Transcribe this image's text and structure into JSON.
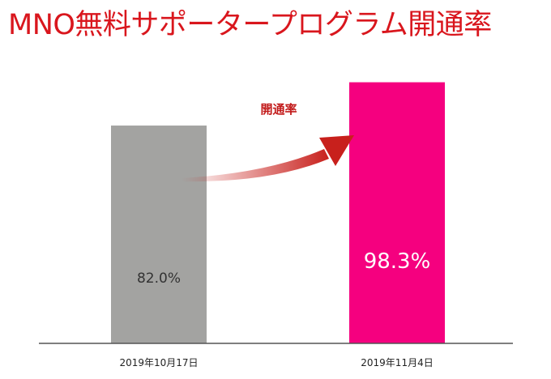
{
  "title": "MNO無料サポータープログラム開通率",
  "annotation": "開通率",
  "colors": {
    "title": "#d9161d",
    "annotation": "#c21a1a",
    "arrow": "#c8201c",
    "bar_before": "#a3a3a1",
    "bar_after": "#f5007f",
    "axis": "#555555",
    "tick_text": "#222222",
    "label_before": "#333333",
    "label_after": "#ffffff"
  },
  "chart_data": {
    "type": "bar",
    "title": "MNO無料サポータープログラム開通率",
    "categories": [
      "2019年10月17日",
      "2019年11月4日"
    ],
    "values": [
      82.0,
      98.3
    ],
    "value_labels": [
      "82.0%",
      "98.3%"
    ],
    "unit": "%",
    "ylim": [
      0,
      100
    ],
    "grid": false,
    "legend": "none",
    "annotation": "開通率"
  }
}
